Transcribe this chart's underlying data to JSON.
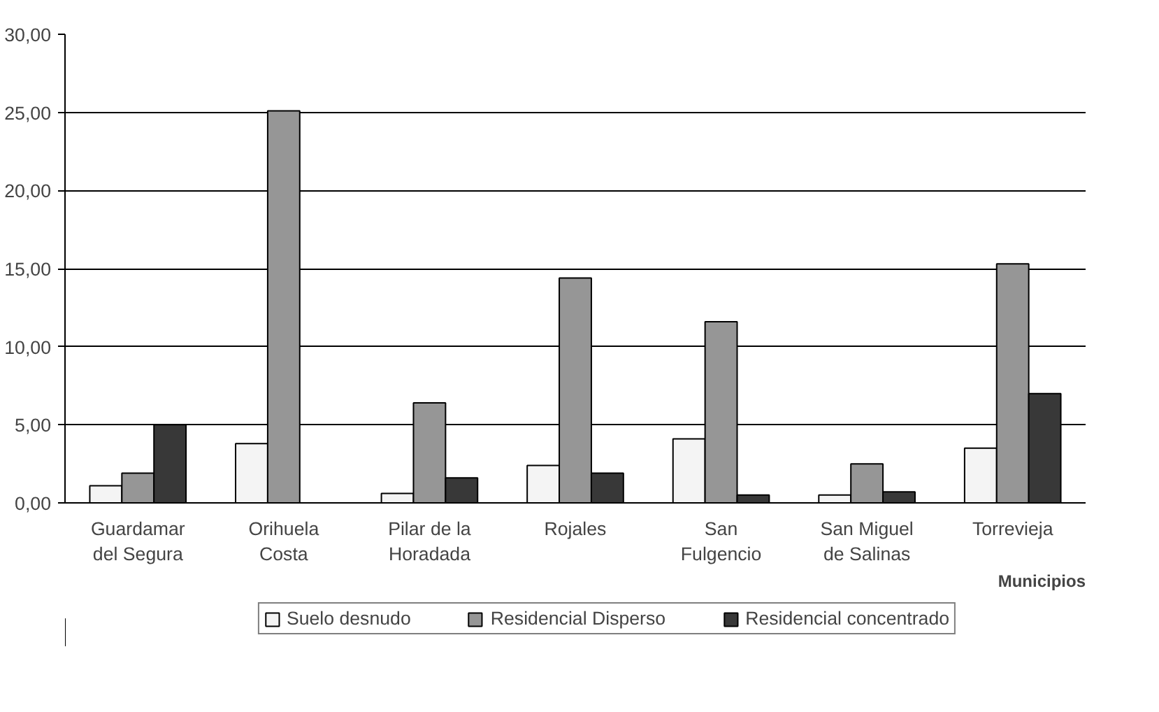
{
  "chart_data": {
    "type": "bar",
    "xlabel": "Municipios",
    "categories": [
      "Guardamar del Segura",
      "Orihuela Costa",
      "Pilar de la Horadada",
      "Rojales",
      "San Fulgencio",
      "San Miguel de Salinas",
      "Torrevieja"
    ],
    "series": [
      {
        "name": "Suelo desnudo",
        "color": "#f4f4f4",
        "values": [
          1.1,
          3.8,
          0.6,
          2.4,
          4.1,
          0.5,
          3.5
        ]
      },
      {
        "name": "Residencial Disperso",
        "color": "#969696",
        "values": [
          1.9,
          25.1,
          6.4,
          14.4,
          11.6,
          2.5,
          15.3
        ]
      },
      {
        "name": "Residencial concentrado",
        "color": "#383838",
        "values": [
          5.0,
          null,
          1.6,
          1.9,
          0.5,
          0.7,
          7.0
        ]
      }
    ],
    "ylim": [
      0,
      30
    ],
    "yticks": [
      {
        "value": 0,
        "label": "0,00"
      },
      {
        "value": 5,
        "label": "5,00"
      },
      {
        "value": 10,
        "label": "10,00"
      },
      {
        "value": 15,
        "label": "15,00"
      },
      {
        "value": 20,
        "label": "20,00"
      },
      {
        "value": 25,
        "label": "25,00"
      },
      {
        "value": 30,
        "label": "30,00"
      }
    ],
    "grid": "y",
    "legend": "bottom"
  }
}
